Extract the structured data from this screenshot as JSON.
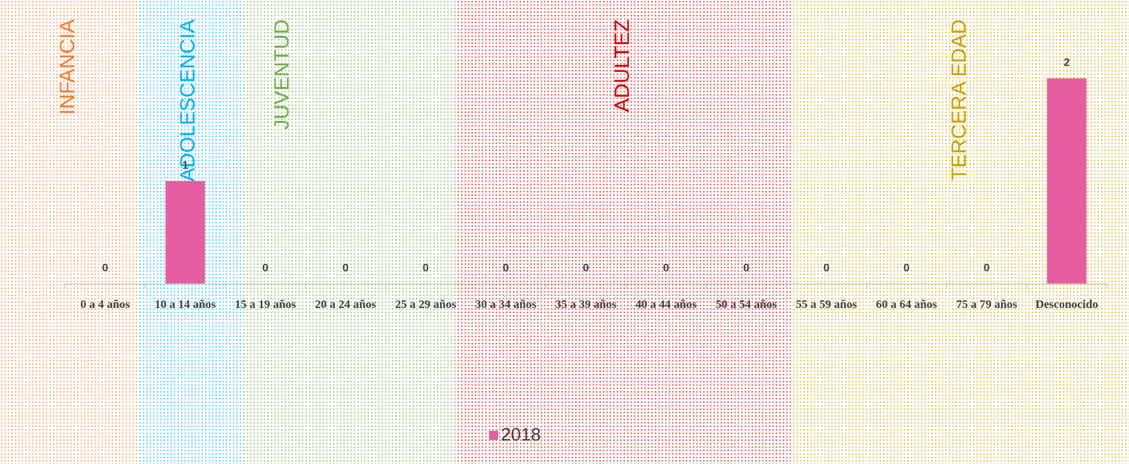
{
  "chart_data": {
    "type": "bar",
    "categories": [
      "0 a 4 años",
      "10 a 14 años",
      "15 a 19 años",
      "20 a 24 años",
      "25 a 29 años",
      "30 a 34 años",
      "35 a 39 años",
      "40 a 44 años",
      "50 a 54 años",
      "55 a 59 años",
      "60 a 64 años",
      "75 a 79 años",
      "Desconocido"
    ],
    "series": [
      {
        "name": "2018",
        "color": "#e55fa0",
        "values": [
          0,
          1,
          0,
          0,
          0,
          0,
          0,
          0,
          0,
          0,
          0,
          0,
          2
        ]
      }
    ],
    "ylim": [
      0,
      2.5
    ],
    "legend": "bottom",
    "annotations": [
      {
        "text": "INFANCIA",
        "color": "#f07c30"
      },
      {
        "text": "ADOLESCENCIA",
        "color": "#00b0f0"
      },
      {
        "text": "JUVENTUD",
        "color": "#70ad47"
      },
      {
        "text": "ADULTEZ",
        "color": "#d00000"
      },
      {
        "text": "TERCERA EDAD",
        "color": "#c9a100"
      }
    ]
  }
}
